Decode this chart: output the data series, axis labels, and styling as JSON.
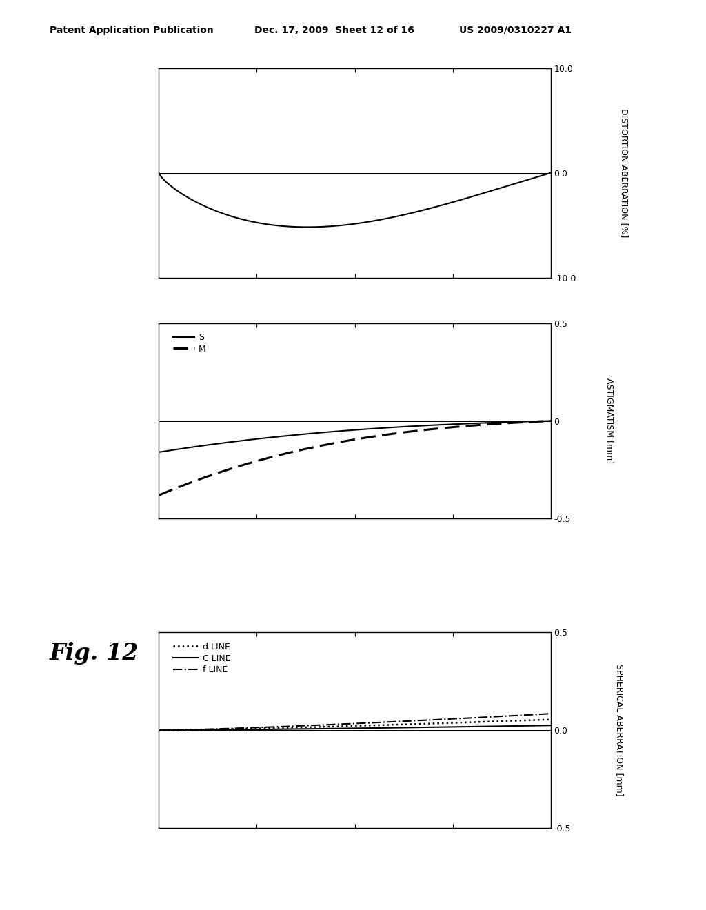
{
  "header_left": "Patent Application Publication",
  "header_mid": "Dec. 17, 2009  Sheet 12 of 16",
  "header_right": "US 2009/0310227 A1",
  "fig_label": "Fig. 12",
  "background_color": "#ffffff",
  "plot1": {
    "ylim": [
      -10.0,
      10.0
    ],
    "yticks": [
      -10.0,
      0.0,
      10.0
    ],
    "ytick_labels": [
      "-10.0",
      "0.0",
      "10.0"
    ],
    "ylabel": "DISTORTION ABERRATION [%]"
  },
  "plot2": {
    "ylim": [
      -0.5,
      0.5
    ],
    "yticks": [
      -0.5,
      0.0,
      0.5
    ],
    "ytick_labels": [
      "-0.5",
      "0",
      "0.5"
    ],
    "ylabel": "ASTIGMATISM [mm]",
    "legend_labels": [
      "S",
      "M"
    ]
  },
  "plot3": {
    "ylim": [
      -0.5,
      0.5
    ],
    "yticks": [
      -0.5,
      0.0,
      0.5
    ],
    "ytick_labels": [
      "-0.5",
      "0.0",
      "0.5"
    ],
    "ylabel": "SPHERICAL ABERRATION [mm]",
    "legend_labels": [
      "d LINE",
      "C LINE",
      "f LINE"
    ]
  }
}
